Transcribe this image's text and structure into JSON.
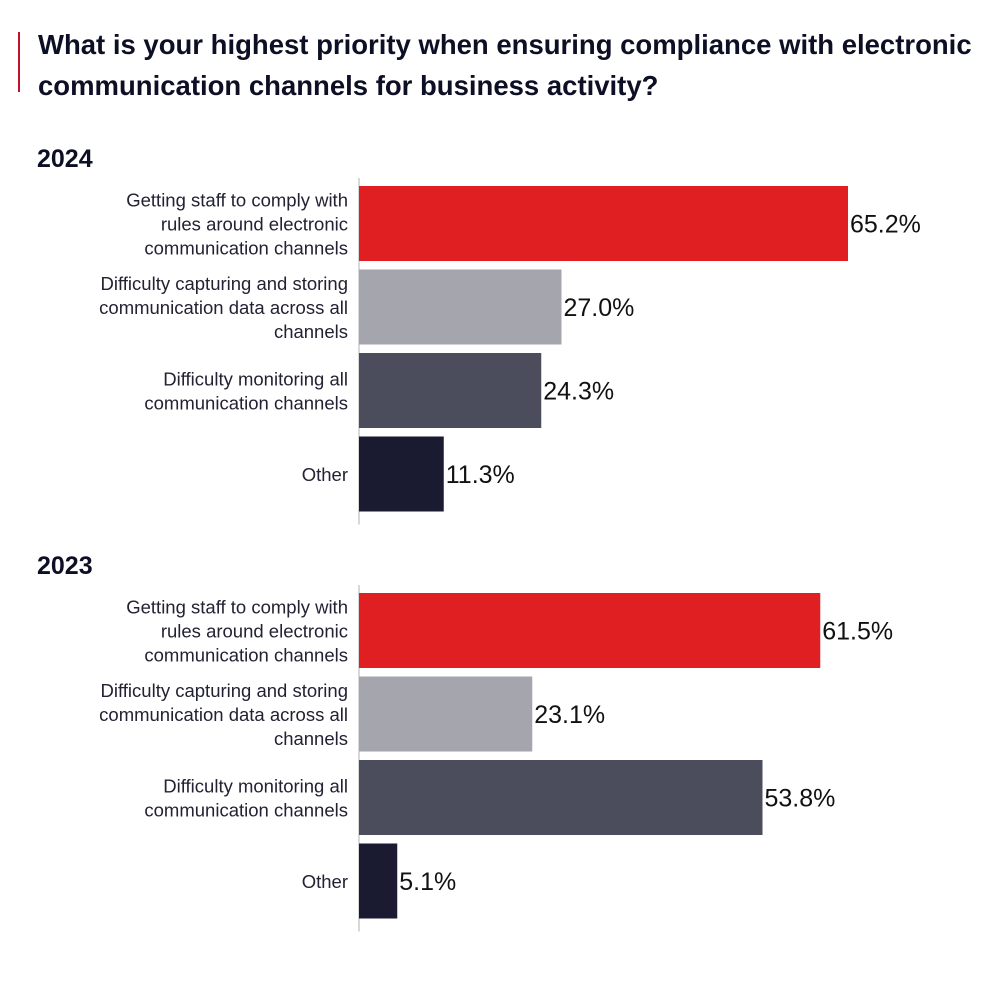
{
  "title": "What is your highest priority when ensuring compliance with electronic communication channels for business activity?",
  "colors": {
    "accent": "#c8102e",
    "bars": [
      "#e01f22",
      "#a5a5ae",
      "#4b4c5c",
      "#1a1a30"
    ]
  },
  "chart_data": [
    {
      "type": "bar",
      "orientation": "horizontal",
      "title": "2024",
      "categories": [
        "Getting staff to comply with rules around electronic communication channels",
        "Difficulty capturing and storing communication data across all channels",
        "Difficulty monitoring all communication channels",
        "Other"
      ],
      "values": [
        65.2,
        27.0,
        24.3,
        11.3
      ],
      "value_labels": [
        "65.2%",
        "27.0%",
        "24.3%",
        "11.3%"
      ],
      "xlim": [
        0,
        100
      ],
      "grid": false
    },
    {
      "type": "bar",
      "orientation": "horizontal",
      "title": "2023",
      "categories": [
        "Getting staff to comply with rules around electronic communication channels",
        "Difficulty capturing and storing communication data across all channels",
        "Difficulty monitoring all communication channels",
        "Other"
      ],
      "values": [
        61.5,
        23.1,
        53.8,
        5.1
      ],
      "value_labels": [
        "61.5%",
        "23.1%",
        "53.8%",
        "5.1%"
      ],
      "xlim": [
        0,
        100
      ],
      "grid": false
    }
  ]
}
